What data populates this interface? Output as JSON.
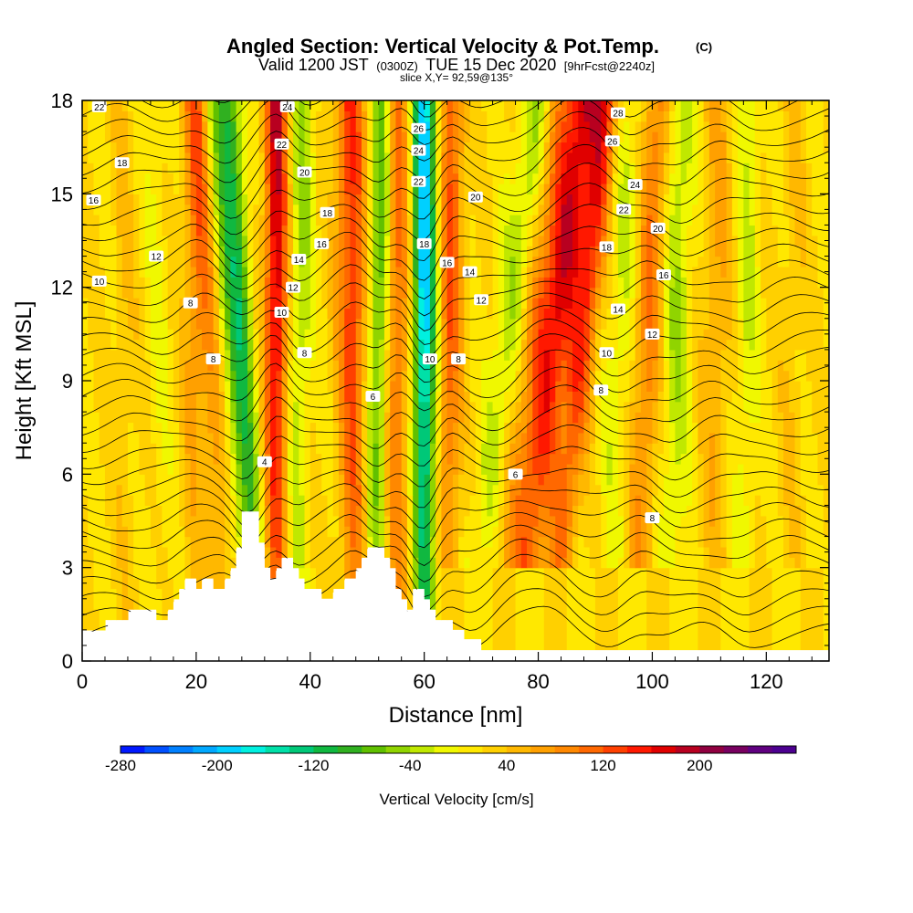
{
  "chart_data": {
    "type": "heatmap",
    "title": "Angled Section: Vertical Velocity & Pot.Temp.",
    "title_mark": "(C)",
    "subtitle_parts": [
      "Valid 1200 JST",
      "(0300Z)",
      "TUE 15 Dec 2020",
      "[9hrFcst@2240z]"
    ],
    "slice_label": "slice X,Y= 92,59@135°",
    "xlabel": "Distance [nm]",
    "ylabel": "Height [Kft MSL]",
    "xlim": [
      0,
      131
    ],
    "ylim": [
      0,
      18
    ],
    "x_ticks": [
      0,
      20,
      40,
      60,
      80,
      100,
      120
    ],
    "y_ticks": [
      0,
      3,
      6,
      9,
      12,
      15,
      18
    ],
    "colorbar": {
      "label": "Vertical Velocity [cm/s]",
      "range": [
        -280,
        280
      ],
      "step": 20,
      "tick_labels": [
        "-280",
        "-200",
        "-120",
        "-40",
        "40",
        "120",
        "200"
      ],
      "tick_values": [
        -280,
        -200,
        -120,
        -40,
        40,
        120,
        200
      ],
      "colors": [
        "#0018ff",
        "#0050ff",
        "#0080ff",
        "#00a8ff",
        "#00d0ff",
        "#00f0e0",
        "#00e0a8",
        "#00c878",
        "#10b840",
        "#30b020",
        "#60c000",
        "#90d400",
        "#c0e800",
        "#f0f800",
        "#ffe800",
        "#ffd000",
        "#ffb800",
        "#ffa000",
        "#ff8800",
        "#ff6800",
        "#ff4000",
        "#ff1800",
        "#e00000",
        "#b80020",
        "#900040",
        "#780060",
        "#600080",
        "#4c0090"
      ]
    },
    "updrafts": [
      {
        "x0": 8,
        "x1": 7,
        "w": 2,
        "v": 20
      },
      {
        "x0": 14,
        "x1": 13,
        "w": 2,
        "v": -20
      },
      {
        "x0": 19,
        "x1": 20,
        "w": 2,
        "v": 40
      },
      {
        "x0": 26,
        "x1": 20,
        "w": 2.5,
        "v": 80
      },
      {
        "x0": 29,
        "x1": 23,
        "w": 2.5,
        "v": -80
      },
      {
        "x0": 31,
        "x1": 26,
        "w": 2,
        "v": -100
      },
      {
        "x0": 34,
        "x1": 34,
        "w": 2,
        "v": 160
      },
      {
        "x0": 37,
        "x1": 39,
        "w": 2,
        "v": -60
      },
      {
        "x0": 48,
        "x1": 47,
        "w": 2.5,
        "v": 120
      },
      {
        "x0": 51,
        "x1": 53,
        "w": 2,
        "v": -120
      },
      {
        "x0": 55,
        "x1": 55,
        "w": 2.5,
        "v": 100
      },
      {
        "x0": 60,
        "x1": 60,
        "w": 2,
        "v": -220
      },
      {
        "x0": 64,
        "x1": 65,
        "w": 2,
        "v": 100
      },
      {
        "x0": 68,
        "x1": 80,
        "w": 3,
        "v": -60
      },
      {
        "x0": 72,
        "x1": 84,
        "w": 3,
        "v": 60
      },
      {
        "x0": 76,
        "x1": 88,
        "w": 3,
        "v": 140
      },
      {
        "x0": 82,
        "x1": 92,
        "w": 2.5,
        "v": 120
      },
      {
        "x0": 92,
        "x1": 96,
        "w": 2.5,
        "v": -40
      },
      {
        "x0": 97,
        "x1": 101,
        "w": 2.5,
        "v": 80
      },
      {
        "x0": 103,
        "x1": 105,
        "w": 2.5,
        "v": -60
      },
      {
        "x0": 110,
        "x1": 112,
        "w": 2.5,
        "v": 40
      },
      {
        "x0": 116,
        "x1": 117,
        "w": 2,
        "v": -40
      },
      {
        "x0": 124,
        "x1": 125,
        "w": 2,
        "v": 20
      }
    ],
    "terrain_kft": [
      [
        0,
        0.95
      ],
      [
        4.5,
        0.95
      ],
      [
        4.5,
        1.3
      ],
      [
        8.5,
        1.3
      ],
      [
        8.5,
        1.6
      ],
      [
        13,
        1.6
      ],
      [
        13,
        1.3
      ],
      [
        15,
        1.3
      ],
      [
        15,
        1.6
      ],
      [
        16,
        1.6
      ],
      [
        16,
        1.9
      ],
      [
        17,
        1.9
      ],
      [
        17,
        2.3
      ],
      [
        18,
        2.3
      ],
      [
        18,
        2.6
      ],
      [
        20,
        2.6
      ],
      [
        20,
        2.3
      ],
      [
        21,
        2.3
      ],
      [
        21,
        2.6
      ],
      [
        23,
        2.6
      ],
      [
        23,
        2.3
      ],
      [
        25,
        2.3
      ],
      [
        25,
        2.6
      ],
      [
        26,
        2.6
      ],
      [
        26,
        2.9
      ],
      [
        27,
        2.9
      ],
      [
        27,
        3.6
      ],
      [
        28,
        3.6
      ],
      [
        28,
        4.8
      ],
      [
        31,
        4.8
      ],
      [
        31,
        3.8
      ],
      [
        32,
        3.8
      ],
      [
        32,
        3.0
      ],
      [
        33,
        3.0
      ],
      [
        33,
        2.6
      ],
      [
        34,
        2.6
      ],
      [
        34,
        2.9
      ],
      [
        35,
        2.9
      ],
      [
        35,
        3.3
      ],
      [
        37,
        3.3
      ],
      [
        37,
        2.9
      ],
      [
        38,
        2.9
      ],
      [
        38,
        2.6
      ],
      [
        39,
        2.6
      ],
      [
        39,
        2.3
      ],
      [
        40,
        2.3
      ],
      [
        40,
        2.2
      ],
      [
        42,
        2.2
      ],
      [
        42,
        2.0
      ],
      [
        44,
        2.0
      ],
      [
        44,
        2.2
      ],
      [
        46,
        2.2
      ],
      [
        46,
        2.6
      ],
      [
        48,
        2.6
      ],
      [
        48,
        2.9
      ],
      [
        49,
        2.9
      ],
      [
        49,
        3.3
      ],
      [
        50,
        3.3
      ],
      [
        50,
        3.6
      ],
      [
        53,
        3.6
      ],
      [
        53,
        3.3
      ],
      [
        54,
        3.3
      ],
      [
        54,
        2.9
      ],
      [
        55,
        2.9
      ],
      [
        55,
        2.3
      ],
      [
        56,
        2.3
      ],
      [
        56,
        1.9
      ],
      [
        57,
        1.9
      ],
      [
        57,
        1.6
      ],
      [
        58,
        1.6
      ],
      [
        58,
        2.3
      ],
      [
        60,
        2.3
      ],
      [
        60,
        1.9
      ],
      [
        61,
        1.9
      ],
      [
        61,
        1.6
      ],
      [
        62,
        1.6
      ],
      [
        62,
        1.3
      ],
      [
        65,
        1.3
      ],
      [
        65,
        1.0
      ],
      [
        67,
        1.0
      ],
      [
        67,
        0.7
      ],
      [
        70,
        0.7
      ],
      [
        70,
        0.35
      ],
      [
        131,
        0.35
      ],
      [
        131,
        0
      ]
    ],
    "contour_labels": [
      {
        "x": 3,
        "y": 17.8,
        "t": "22"
      },
      {
        "x": 7,
        "y": 16.0,
        "t": "18"
      },
      {
        "x": 2,
        "y": 14.8,
        "t": "16"
      },
      {
        "x": 13,
        "y": 13.0,
        "t": "12"
      },
      {
        "x": 3,
        "y": 12.2,
        "t": "10"
      },
      {
        "x": 19,
        "y": 11.5,
        "t": "8"
      },
      {
        "x": 23,
        "y": 9.7,
        "t": "8"
      },
      {
        "x": 32,
        "y": 6.4,
        "t": "4"
      },
      {
        "x": 36,
        "y": 17.8,
        "t": "24"
      },
      {
        "x": 35,
        "y": 16.6,
        "t": "22"
      },
      {
        "x": 39,
        "y": 15.7,
        "t": "20"
      },
      {
        "x": 43,
        "y": 14.4,
        "t": "18"
      },
      {
        "x": 42,
        "y": 13.4,
        "t": "16"
      },
      {
        "x": 38,
        "y": 12.9,
        "t": "14"
      },
      {
        "x": 37,
        "y": 12.0,
        "t": "12"
      },
      {
        "x": 35,
        "y": 11.2,
        "t": "10"
      },
      {
        "x": 39,
        "y": 9.9,
        "t": "8"
      },
      {
        "x": 51,
        "y": 8.5,
        "t": "6"
      },
      {
        "x": 59,
        "y": 17.1,
        "t": "26"
      },
      {
        "x": 59,
        "y": 16.4,
        "t": "24"
      },
      {
        "x": 59,
        "y": 15.4,
        "t": "22"
      },
      {
        "x": 69,
        "y": 14.9,
        "t": "20"
      },
      {
        "x": 60,
        "y": 13.4,
        "t": "18"
      },
      {
        "x": 64,
        "y": 12.8,
        "t": "16"
      },
      {
        "x": 68,
        "y": 12.5,
        "t": "14"
      },
      {
        "x": 70,
        "y": 11.6,
        "t": "12"
      },
      {
        "x": 61,
        "y": 9.7,
        "t": "10"
      },
      {
        "x": 66,
        "y": 9.7,
        "t": "8"
      },
      {
        "x": 76,
        "y": 6.0,
        "t": "6"
      },
      {
        "x": 94,
        "y": 17.6,
        "t": "28"
      },
      {
        "x": 93,
        "y": 16.7,
        "t": "26"
      },
      {
        "x": 97,
        "y": 15.3,
        "t": "24"
      },
      {
        "x": 95,
        "y": 14.5,
        "t": "22"
      },
      {
        "x": 101,
        "y": 13.9,
        "t": "20"
      },
      {
        "x": 92,
        "y": 13.3,
        "t": "18"
      },
      {
        "x": 102,
        "y": 12.4,
        "t": "16"
      },
      {
        "x": 94,
        "y": 11.3,
        "t": "14"
      },
      {
        "x": 100,
        "y": 10.5,
        "t": "12"
      },
      {
        "x": 92,
        "y": 9.9,
        "t": "10"
      },
      {
        "x": 91,
        "y": 8.7,
        "t": "8"
      },
      {
        "x": 100,
        "y": 4.6,
        "t": "8"
      }
    ]
  }
}
